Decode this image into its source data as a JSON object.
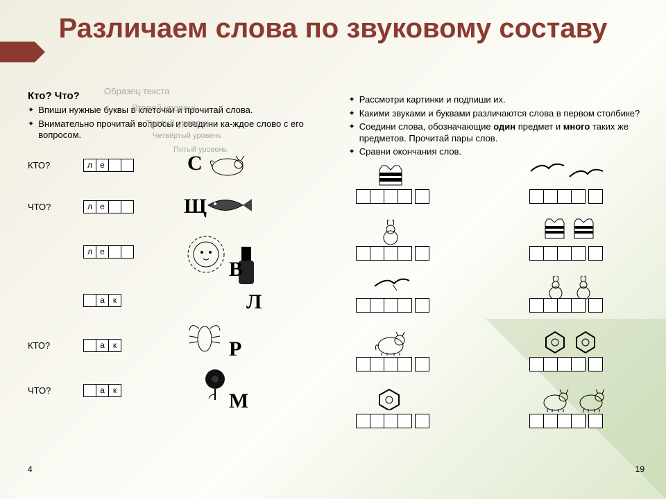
{
  "title": "Различаем слова по звуковому составу",
  "faint_placeholders": {
    "p1": "Образец текста",
    "p2": "Второй уровень",
    "p3": "Третий уровень",
    "p4": "Четвёртый уровень",
    "p5": "Пятый уровень"
  },
  "left": {
    "heading": "Кто? Что?",
    "instructions": [
      "Впиши нужные буквы в клеточки и прочитай слова.",
      "Внимательно прочитай вопросы и соедини ка-ждое слово с его вопросом."
    ],
    "rows": [
      {
        "q": "КТО?",
        "cells": [
          "л",
          "е",
          "",
          ""
        ],
        "letter": "С"
      },
      {
        "q": "ЧТО?",
        "cells": [
          "л",
          "е",
          "",
          ""
        ],
        "letter": "Щ"
      },
      {
        "q": "",
        "cells": [
          "л",
          "е",
          "",
          ""
        ],
        "letter": "В"
      },
      {
        "q": "",
        "cells": [
          "",
          "а",
          "к"
        ],
        "letter": "Л"
      },
      {
        "q": "КТО?",
        "cells": [
          "",
          "а",
          "к"
        ],
        "letter": "Р"
      },
      {
        "q": "ЧТО?",
        "cells": [
          "",
          "а",
          "к"
        ],
        "letter": "М"
      }
    ],
    "page_num": "4"
  },
  "right": {
    "instructions": [
      "Рассмотри картинки и подпиши их.",
      "Какими звуками и буквами различаются слова в первом столбике?",
      "Соедини слова, обозначающие <b>один</b> предмет и <b>много</b> таких же предметов. Прочитай пары слов.",
      "Сравни окончания слов."
    ],
    "left_boxes": [
      5,
      5,
      5,
      5,
      5
    ],
    "right_boxes": [
      5,
      5,
      5,
      5,
      5
    ],
    "page_num": "19"
  },
  "colors": {
    "title": "#8b3a2f",
    "bg_top": "#f0ede0",
    "bg_accent": "#dce8cc"
  }
}
